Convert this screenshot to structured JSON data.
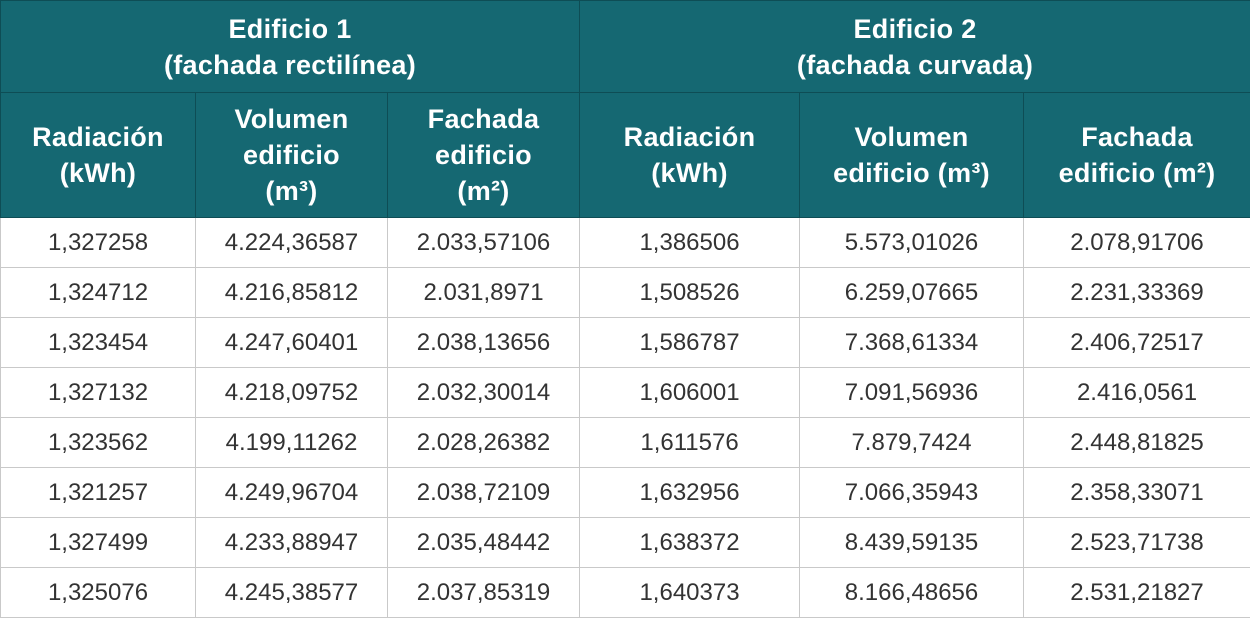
{
  "groups": [
    {
      "line1": "Edificio 1",
      "line2": "(fachada rectilínea)"
    },
    {
      "line1": "Edificio 2",
      "line2": "(fachada curvada)"
    }
  ],
  "columns": {
    "b1": [
      {
        "lines": [
          "Radiación",
          "(kWh)"
        ]
      },
      {
        "lines": [
          "Volumen",
          "edificio",
          "(m³)"
        ]
      },
      {
        "lines": [
          "Fachada",
          "edificio",
          "(m²)"
        ]
      }
    ],
    "b2": [
      {
        "lines": [
          "Radiación",
          "(kWh)"
        ]
      },
      {
        "lines": [
          "Volumen",
          "edificio (m³)"
        ]
      },
      {
        "lines": [
          "Fachada",
          "edificio (m²)"
        ]
      }
    ]
  },
  "rows": [
    [
      "1,327258",
      "4.224,36587",
      "2.033,57106",
      "1,386506",
      "5.573,01026",
      "2.078,91706"
    ],
    [
      "1,324712",
      "4.216,85812",
      "2.031,8971",
      "1,508526",
      "6.259,07665",
      "2.231,33369"
    ],
    [
      "1,323454",
      "4.247,60401",
      "2.038,13656",
      "1,586787",
      "7.368,61334",
      "2.406,72517"
    ],
    [
      "1,327132",
      "4.218,09752",
      "2.032,30014",
      "1,606001",
      "7.091,56936",
      "2.416,0561"
    ],
    [
      "1,323562",
      "4.199,11262",
      "2.028,26382",
      "1,611576",
      "7.879,7424",
      "2.448,81825"
    ],
    [
      "1,321257",
      "4.249,96704",
      "2.038,72109",
      "1,632956",
      "7.066,35943",
      "2.358,33071"
    ],
    [
      "1,327499",
      "4.233,88947",
      "2.035,48442",
      "1,638372",
      "8.439,59135",
      "2.523,71738"
    ],
    [
      "1,325076",
      "4.245,38577",
      "2.037,85319",
      "1,640373",
      "8.166,48656",
      "2.531,21827"
    ]
  ]
}
